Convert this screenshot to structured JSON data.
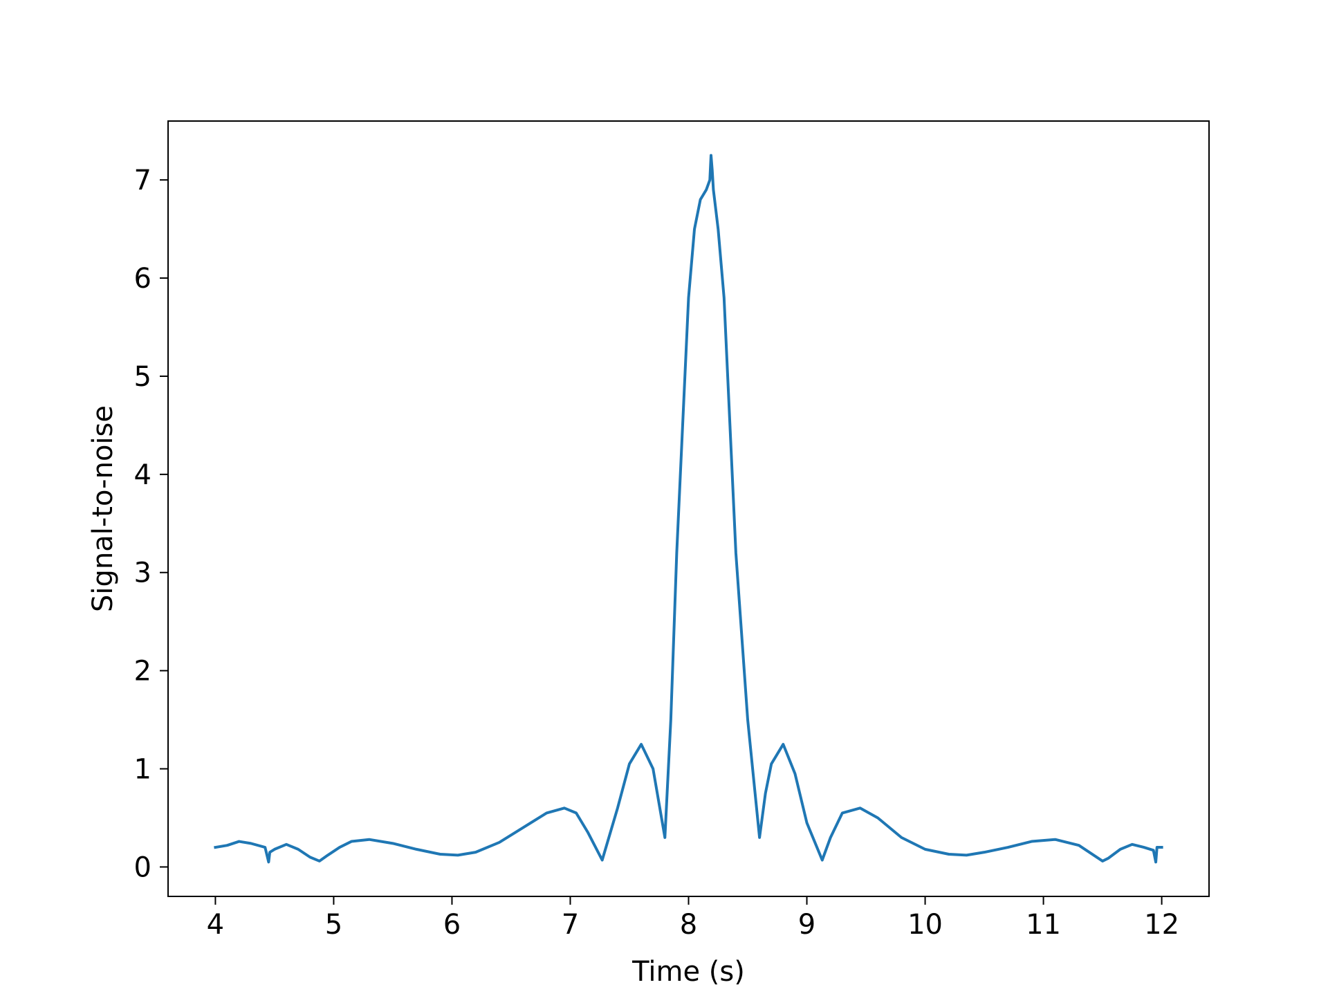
{
  "chart_data": {
    "type": "line",
    "title": "",
    "xlabel": "Time (s)",
    "ylabel": "Signal-to-noise",
    "xlim": [
      3.6,
      12.4
    ],
    "ylim": [
      -0.3,
      7.6
    ],
    "xticks": [
      4,
      5,
      6,
      7,
      8,
      9,
      10,
      11,
      12
    ],
    "xtick_labels": [
      "4",
      "5",
      "6",
      "7",
      "8",
      "9",
      "10",
      "11",
      "12"
    ],
    "yticks": [
      0,
      1,
      2,
      3,
      4,
      5,
      6,
      7
    ],
    "ytick_labels": [
      "0",
      "1",
      "2",
      "3",
      "4",
      "5",
      "6",
      "7"
    ],
    "grid": false,
    "line_color": "#1f77b4",
    "series": [
      {
        "x": [
          4.0,
          4.1,
          4.2,
          4.3,
          4.42,
          4.45,
          4.46,
          4.5,
          4.6,
          4.7,
          4.8,
          4.88,
          4.95,
          5.05,
          5.15,
          5.3,
          5.5,
          5.7,
          5.9,
          6.05,
          6.2,
          6.4,
          6.6,
          6.8,
          6.95,
          7.05,
          7.15,
          7.27,
          7.4,
          7.5,
          7.6,
          7.7,
          7.8,
          7.85,
          7.9,
          8.0,
          8.05,
          8.1,
          8.15,
          8.18,
          8.19,
          8.2,
          8.21,
          8.22,
          8.25,
          8.3,
          8.35,
          8.4,
          8.5,
          8.6,
          8.65,
          8.7,
          8.8,
          8.9,
          9.0,
          9.13,
          9.2,
          9.3,
          9.45,
          9.6,
          9.8,
          10.0,
          10.2,
          10.35,
          10.5,
          10.7,
          10.9,
          11.1,
          11.3,
          11.5,
          11.55,
          11.65,
          11.75,
          11.85,
          11.93,
          11.95,
          11.96,
          12.0
        ],
        "y": [
          0.2,
          0.22,
          0.26,
          0.24,
          0.2,
          0.05,
          0.15,
          0.18,
          0.23,
          0.18,
          0.1,
          0.06,
          0.12,
          0.2,
          0.26,
          0.28,
          0.24,
          0.18,
          0.13,
          0.12,
          0.15,
          0.25,
          0.4,
          0.55,
          0.6,
          0.55,
          0.35,
          0.07,
          0.6,
          1.05,
          1.25,
          1.0,
          0.3,
          1.5,
          3.2,
          5.8,
          6.5,
          6.8,
          6.9,
          7.0,
          7.25,
          7.1,
          6.9,
          6.8,
          6.5,
          5.8,
          4.5,
          3.2,
          1.5,
          0.3,
          0.75,
          1.05,
          1.25,
          0.95,
          0.45,
          0.07,
          0.3,
          0.55,
          0.6,
          0.5,
          0.3,
          0.18,
          0.13,
          0.12,
          0.15,
          0.2,
          0.26,
          0.28,
          0.22,
          0.06,
          0.09,
          0.18,
          0.23,
          0.2,
          0.17,
          0.05,
          0.2,
          0.2
        ]
      }
    ]
  }
}
